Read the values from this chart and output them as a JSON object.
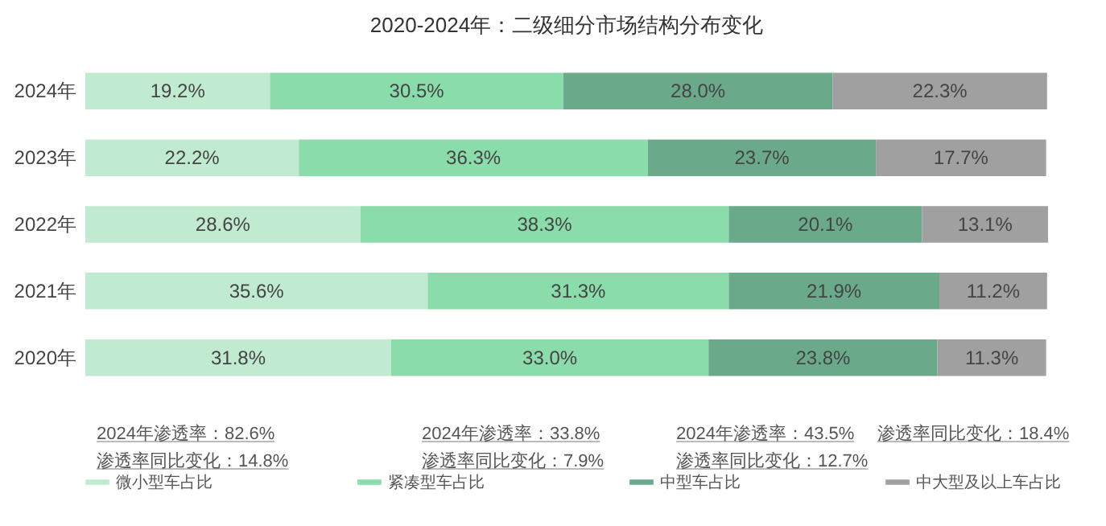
{
  "chart_data": {
    "type": "bar",
    "orientation": "horizontal",
    "stacked": true,
    "title": "2020-2024年：二级细分市场结构分布变化",
    "categories": [
      "2024年",
      "2023年",
      "2022年",
      "2021年",
      "2020年"
    ],
    "series": [
      {
        "name": "微小型车占比",
        "color": "#c0ebd0",
        "values": [
          19.2,
          22.2,
          28.6,
          35.6,
          31.8
        ],
        "value_labels": [
          "19.2%",
          "22.2%",
          "28.6%",
          "35.6%",
          "31.8%"
        ]
      },
      {
        "name": "紧凑型车占比",
        "color": "#8adcaa",
        "values": [
          30.5,
          36.3,
          38.3,
          31.3,
          33.0
        ],
        "value_labels": [
          "30.5%",
          "36.3%",
          "38.3%",
          "31.3%",
          "33.0%"
        ]
      },
      {
        "name": "中型车占比",
        "color": "#6aa98a",
        "values": [
          28.0,
          23.7,
          20.1,
          21.9,
          23.8
        ],
        "value_labels": [
          "28.0%",
          "23.7%",
          "20.1%",
          "21.9%",
          "23.8%"
        ]
      },
      {
        "name": "中大型及以上车占比",
        "color": "#a0a0a0",
        "values": [
          22.3,
          17.7,
          13.1,
          11.2,
          11.3
        ],
        "value_labels": [
          "22.3%",
          "17.7%",
          "13.1%",
          "11.2%",
          "11.3%"
        ]
      }
    ],
    "tick_labels": "y",
    "legend": "bottom",
    "annotations": [
      "2024年渗透率：82.6%",
      "渗透率同比变化：14.8%",
      "2024年渗透率：33.8%",
      "渗透率同比变化：7.9%",
      "2024年渗透率：43.5%",
      "渗透率同比变化：12.7%",
      "渗透率同比变化：18.4%"
    ]
  }
}
